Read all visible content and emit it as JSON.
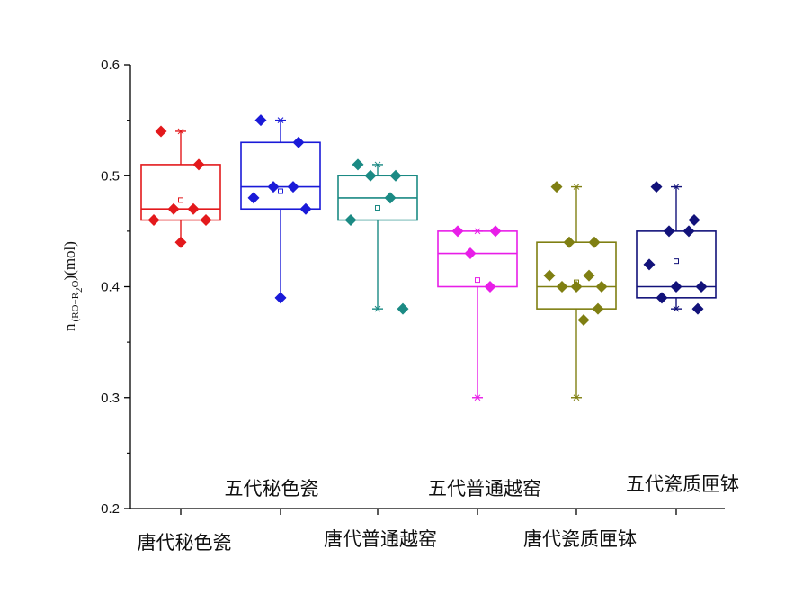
{
  "chart_data": {
    "type": "box",
    "ylabel": {
      "prefix": "n",
      "subscript_a": "(RO+R",
      "subscript_b": "2",
      "subscript_c": "O",
      "suffix": ")(mol)"
    },
    "ylim": [
      0.2,
      0.6
    ],
    "yticks": [
      0.2,
      0.3,
      0.4,
      0.5,
      0.6
    ],
    "ytick_labels": [
      "0.2",
      "0.3",
      "0.4",
      "0.5",
      "0.6"
    ],
    "grid": false,
    "categories": [
      "唐代秘色瓷",
      "五代秘色瓷",
      "唐代普通越窑",
      "五代普通越窑",
      "唐代瓷质匣钵",
      "五代瓷质匣钵"
    ],
    "series": [
      {
        "color": "#e3191c",
        "q1": 0.46,
        "median": 0.47,
        "q3": 0.51,
        "whisker_low": 0.44,
        "whisker_high": 0.54,
        "mean": 0.478,
        "points": [
          0.54,
          0.51,
          0.47,
          0.47,
          0.46,
          0.46,
          0.44
        ]
      },
      {
        "color": "#1a1ad8",
        "q1": 0.47,
        "median": 0.49,
        "q3": 0.53,
        "whisker_low": 0.39,
        "whisker_high": 0.55,
        "mean": 0.486,
        "points": [
          0.55,
          0.53,
          0.49,
          0.49,
          0.48,
          0.47,
          0.39
        ]
      },
      {
        "color": "#1b8a84",
        "q1": 0.46,
        "median": 0.48,
        "q3": 0.5,
        "whisker_low": 0.38,
        "whisker_high": 0.51,
        "mean": 0.471,
        "points": [
          0.51,
          0.5,
          0.5,
          0.48,
          0.46,
          0.38
        ]
      },
      {
        "color": "#e81ee8",
        "q1": 0.4,
        "median": 0.43,
        "q3": 0.45,
        "whisker_low": 0.3,
        "whisker_high": 0.45,
        "mean": 0.406,
        "points": [
          0.45,
          0.45,
          0.43,
          0.4
        ]
      },
      {
        "color": "#7f7f12",
        "q1": 0.38,
        "median": 0.4,
        "q3": 0.44,
        "whisker_low": 0.3,
        "whisker_high": 0.49,
        "mean": 0.404,
        "points": [
          0.49,
          0.44,
          0.44,
          0.41,
          0.41,
          0.4,
          0.4,
          0.4,
          0.38,
          0.37
        ]
      },
      {
        "color": "#12127a",
        "q1": 0.39,
        "median": 0.4,
        "q3": 0.45,
        "whisker_low": 0.38,
        "whisker_high": 0.49,
        "mean": 0.423,
        "points": [
          0.49,
          0.46,
          0.45,
          0.45,
          0.42,
          0.4,
          0.4,
          0.39,
          0.38
        ]
      }
    ]
  }
}
